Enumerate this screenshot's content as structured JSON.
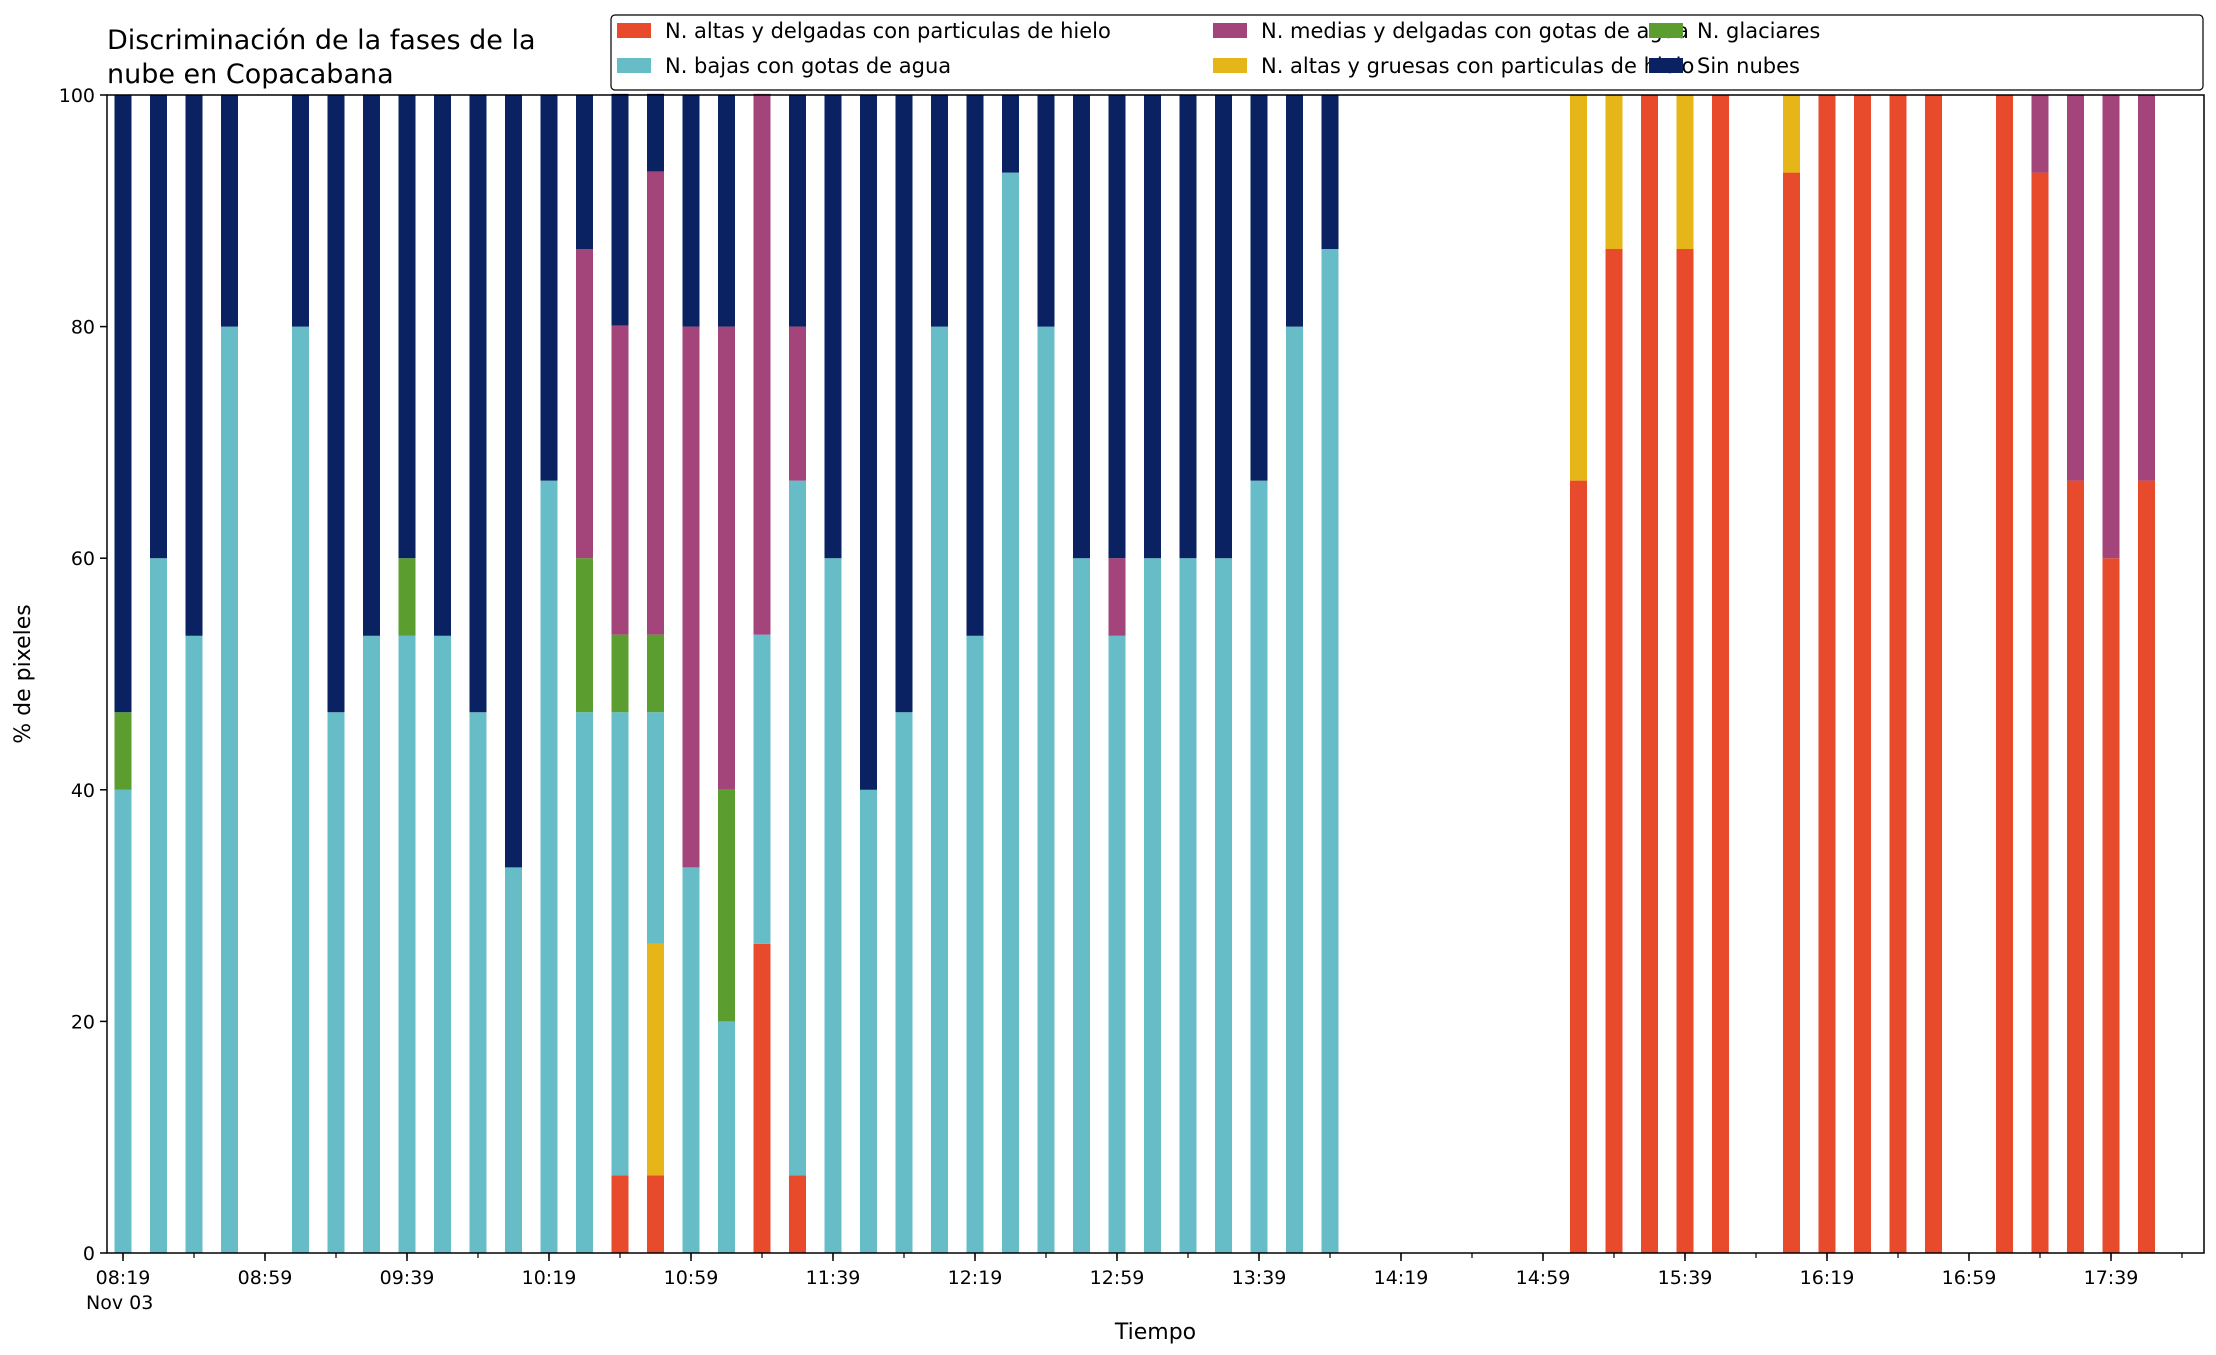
{
  "chart_data": {
    "type": "bar",
    "stacked": true,
    "title": "Discriminación de la fases de la\nnube en Copacabana",
    "xlabel": "Tiempo",
    "ylabel": "% de pixeles",
    "ylim": [
      0,
      100
    ],
    "yticks": [
      0,
      20,
      40,
      60,
      80,
      100
    ],
    "x_start": "08:19",
    "x_step_minutes": 10,
    "x_date_label": "Nov 03",
    "xticks_major": [
      "08:19",
      "08:59",
      "09:39",
      "10:19",
      "10:59",
      "11:39",
      "12:19",
      "12:59",
      "13:39",
      "14:19",
      "14:59",
      "15:39",
      "16:19",
      "16:59",
      "17:39"
    ],
    "grid": false,
    "legend_position": "top-right",
    "series": [
      {
        "name": "N. altas y delgadas con particulas de hielo",
        "color": "#e84a2c"
      },
      {
        "name": "N. altas y gruesas con particulas de hielo",
        "color": "#e6b517"
      },
      {
        "name": "N. bajas con gotas de agua",
        "color": "#66bdc8"
      },
      {
        "name": "N. glaciares",
        "color": "#5c9d2f"
      },
      {
        "name": "N. medias y delgadas con gotas de agua",
        "color": "#a3447b"
      },
      {
        "name": "Sin nubes",
        "color": "#0a2162"
      }
    ],
    "legend_order": [
      0,
      2,
      4,
      1,
      3,
      5
    ],
    "bars": [
      {
        "time": "08:19",
        "values": [
          0,
          0,
          40,
          6.7,
          0,
          53.3
        ]
      },
      {
        "time": "08:29",
        "values": [
          0,
          0,
          60,
          0,
          0,
          40
        ]
      },
      {
        "time": "08:39",
        "values": [
          0,
          0,
          53.3,
          0,
          0,
          46.7
        ]
      },
      {
        "time": "08:49",
        "values": [
          0,
          0,
          80,
          0,
          0,
          20
        ]
      },
      {
        "time": "09:09",
        "values": [
          0,
          0,
          80,
          0,
          0,
          20
        ]
      },
      {
        "time": "09:19",
        "values": [
          0,
          0,
          46.7,
          0,
          0,
          53.3
        ]
      },
      {
        "time": "09:29",
        "values": [
          0,
          0,
          53.3,
          0,
          0,
          46.7
        ]
      },
      {
        "time": "09:39",
        "values": [
          0,
          0,
          53.3,
          6.7,
          0,
          40
        ]
      },
      {
        "time": "09:49",
        "values": [
          0,
          0,
          53.3,
          0,
          0,
          46.7
        ]
      },
      {
        "time": "09:59",
        "values": [
          0,
          0,
          46.7,
          0,
          0,
          53.3
        ]
      },
      {
        "time": "10:09",
        "values": [
          0,
          0,
          33.3,
          0,
          0,
          66.7
        ]
      },
      {
        "time": "10:19",
        "values": [
          0,
          0,
          66.7,
          0,
          0,
          33.3
        ]
      },
      {
        "time": "10:29",
        "values": [
          0,
          0,
          46.7,
          13.3,
          26.7,
          13.3
        ]
      },
      {
        "time": "10:39",
        "values": [
          6.7,
          0,
          40,
          6.7,
          26.7,
          20
        ]
      },
      {
        "time": "10:49",
        "values": [
          6.7,
          20,
          20,
          6.7,
          40,
          6.7
        ]
      },
      {
        "time": "10:59",
        "values": [
          0,
          0,
          33.3,
          0,
          46.7,
          20
        ]
      },
      {
        "time": "11:09",
        "values": [
          0,
          0,
          20,
          20,
          40,
          20
        ]
      },
      {
        "time": "11:19",
        "values": [
          26.7,
          0,
          26.7,
          0,
          46.7,
          0
        ]
      },
      {
        "time": "11:29",
        "values": [
          6.7,
          0,
          60,
          0,
          13.3,
          20
        ]
      },
      {
        "time": "11:39",
        "values": [
          0,
          0,
          60,
          0,
          0,
          40
        ]
      },
      {
        "time": "11:49",
        "values": [
          0,
          0,
          40,
          0,
          0,
          60
        ]
      },
      {
        "time": "11:59",
        "values": [
          0,
          0,
          46.7,
          0,
          0,
          53.3
        ]
      },
      {
        "time": "12:09",
        "values": [
          0,
          0,
          80,
          0,
          0,
          20
        ]
      },
      {
        "time": "12:19",
        "values": [
          0,
          0,
          53.3,
          0,
          0,
          46.7
        ]
      },
      {
        "time": "12:29",
        "values": [
          0,
          0,
          93.3,
          0,
          0,
          6.7
        ]
      },
      {
        "time": "12:39",
        "values": [
          0,
          0,
          80,
          0,
          0,
          20
        ]
      },
      {
        "time": "12:49",
        "values": [
          0,
          0,
          60,
          0,
          0,
          40
        ]
      },
      {
        "time": "12:59",
        "values": [
          0,
          0,
          53.3,
          0,
          6.7,
          40
        ]
      },
      {
        "time": "13:09",
        "values": [
          0,
          0,
          60,
          0,
          0,
          40
        ]
      },
      {
        "time": "13:19",
        "values": [
          0,
          0,
          60,
          0,
          0,
          40
        ]
      },
      {
        "time": "13:29",
        "values": [
          0,
          0,
          60,
          0,
          0,
          40
        ]
      },
      {
        "time": "13:39",
        "values": [
          0,
          0,
          66.7,
          0,
          0,
          33.3
        ]
      },
      {
        "time": "13:49",
        "values": [
          0,
          0,
          80,
          0,
          0,
          20
        ]
      },
      {
        "time": "13:59",
        "values": [
          0,
          0,
          86.7,
          0,
          0,
          13.3
        ]
      },
      {
        "time": "15:09",
        "values": [
          66.7,
          33.3,
          0,
          0,
          0,
          0
        ]
      },
      {
        "time": "15:19",
        "values": [
          86.7,
          13.3,
          0,
          0,
          0,
          0
        ]
      },
      {
        "time": "15:29",
        "values": [
          100,
          0,
          0,
          0,
          0,
          0
        ]
      },
      {
        "time": "15:39",
        "values": [
          86.7,
          13.3,
          0,
          0,
          0,
          0
        ]
      },
      {
        "time": "15:49",
        "values": [
          100,
          0,
          0,
          0,
          0,
          0
        ]
      },
      {
        "time": "16:09",
        "values": [
          93.3,
          6.7,
          0,
          0,
          0,
          0
        ]
      },
      {
        "time": "16:19",
        "values": [
          100,
          0,
          0,
          0,
          0,
          0
        ]
      },
      {
        "time": "16:29",
        "values": [
          100,
          0,
          0,
          0,
          0,
          0
        ]
      },
      {
        "time": "16:39",
        "values": [
          100,
          0,
          0,
          0,
          0,
          0
        ]
      },
      {
        "time": "16:49",
        "values": [
          100,
          0,
          0,
          0,
          0,
          0
        ]
      },
      {
        "time": "17:09",
        "values": [
          100,
          0,
          0,
          0,
          0,
          0
        ]
      },
      {
        "time": "17:19",
        "values": [
          93.3,
          0,
          0,
          0,
          6.7,
          0
        ]
      },
      {
        "time": "17:29",
        "values": [
          66.7,
          0,
          0,
          0,
          33.3,
          0
        ]
      },
      {
        "time": "17:39",
        "values": [
          60,
          0,
          0,
          0,
          40,
          0
        ]
      },
      {
        "time": "17:49",
        "values": [
          66.7,
          0,
          0,
          0,
          33.3,
          0
        ]
      }
    ]
  }
}
